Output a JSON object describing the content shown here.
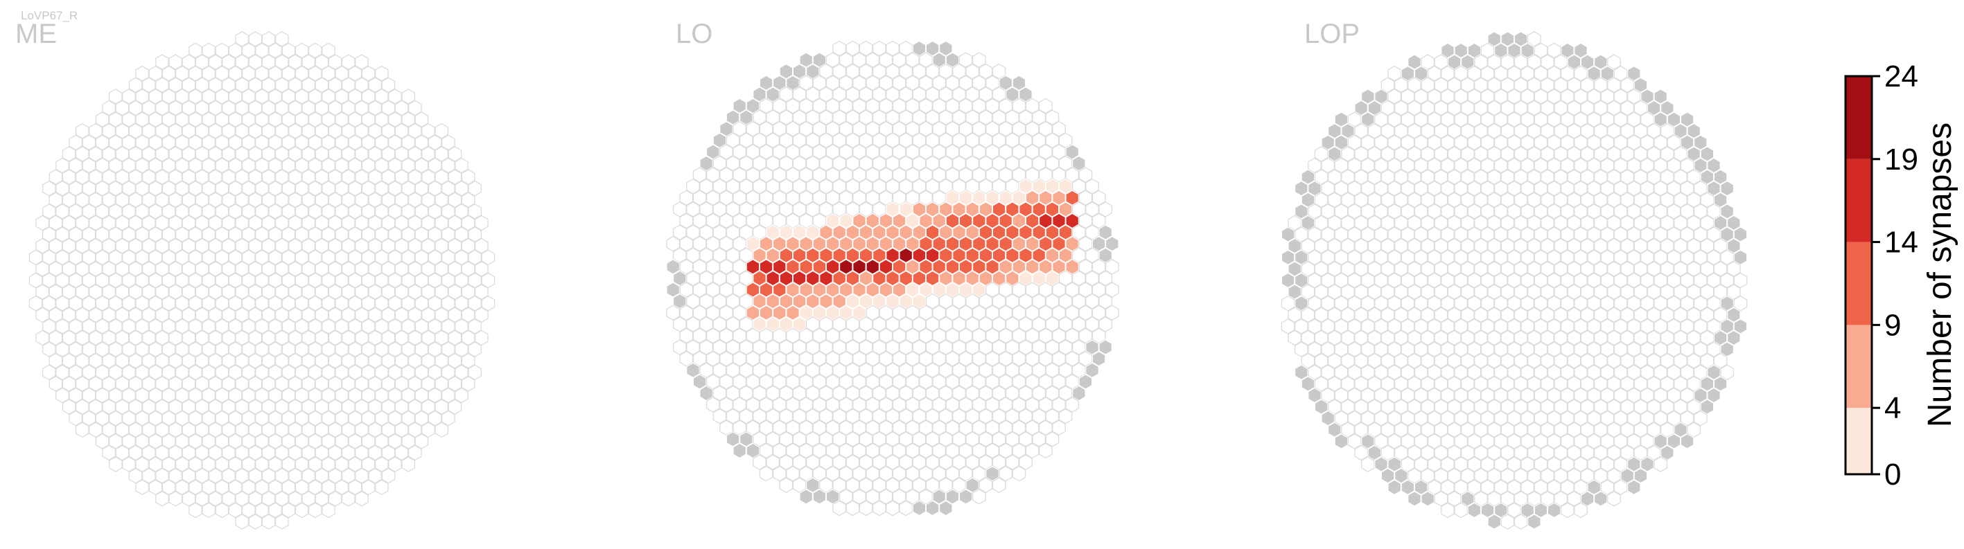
{
  "cell_type": "LoVP67_R",
  "chart_data": {
    "type": "heatmap",
    "panels": [
      {
        "title": "ME"
      },
      {
        "title": "LO"
      },
      {
        "title": "LOP"
      }
    ],
    "colorbar": {
      "label": "Number of synapses",
      "ticks": [
        "0",
        "4",
        "9",
        "14",
        "19",
        "24"
      ],
      "bin_edges": [
        0,
        4,
        9,
        14,
        19,
        24
      ],
      "bin_colors": [
        "#fde8de",
        "#f8ab91",
        "#ef6448",
        "#d42a25",
        "#a30f15"
      ]
    },
    "colors": {
      "empty_column_stroke": "#dcdcdc",
      "out_of_set_column": "#c9c9c9",
      "title_gray": "#c8c8c8"
    },
    "lo_synapse_columns_approx": {
      "note": "",
      "bins_1_based": "1:0-4, 2:4-9, 3:9-14, 4:14-19, 5:19-24"
    }
  }
}
